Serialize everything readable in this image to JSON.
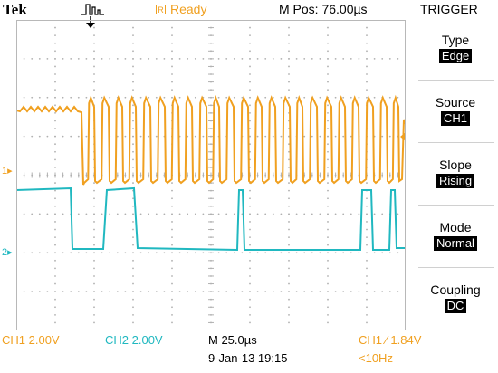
{
  "header": {
    "brand": "Tek",
    "trigger_status_icon": "R",
    "trigger_status": "Ready",
    "m_pos": "M Pos: 76.00µs",
    "menu_title": "TRIGGER"
  },
  "markers": {
    "ch1_marker": "1▸",
    "ch2_marker": "2▸"
  },
  "trigger_menu": [
    {
      "label": "Type",
      "value": "Edge"
    },
    {
      "label": "Source",
      "value": "CH1"
    },
    {
      "label": "Slope",
      "value": "Rising"
    },
    {
      "label": "Mode",
      "value": "Normal"
    },
    {
      "label": "Coupling",
      "value": "DC"
    }
  ],
  "footer": {
    "ch1_scale": "CH1  2.00V",
    "ch2_scale": "CH2  2.00V",
    "timebase": "M 25.0µs",
    "trigger_info": "CH1 ∕ 1.84V",
    "date": "9-Jan-13 19:15",
    "frequency": "<10Hz"
  },
  "colors": {
    "ch1": "#f0a020",
    "ch2": "#20b8c0",
    "grid": "#b8b8b8",
    "background": "#ffffff"
  }
}
